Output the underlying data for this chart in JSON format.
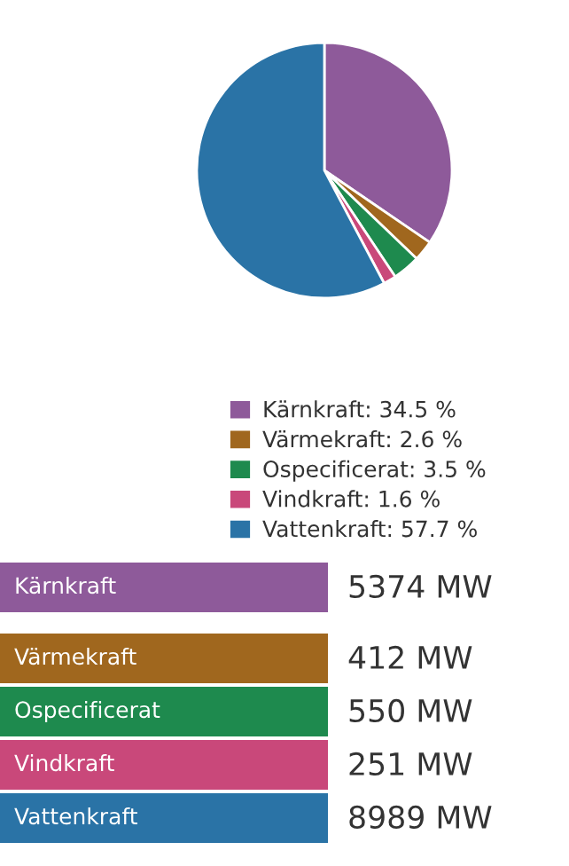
{
  "chart_data": [
    {
      "type": "pie",
      "categories": [
        "Kärnkraft: 34.5 %",
        "Värmekraft: 2.6 %",
        "Ospecificerat: 3.5 %",
        "Vindkraft: 1.6 %",
        "Vattenkraft: 57.7 %"
      ],
      "values": [
        34.5,
        2.6,
        3.5,
        1.6,
        57.7
      ],
      "colors": [
        "#8e5a9a",
        "#a0671e",
        "#1e8a4e",
        "#c9487a",
        "#2a73a6"
      ],
      "legend": "bottom"
    },
    {
      "type": "other",
      "categories": [
        "Kärnkraft",
        "Värmekraft",
        "Ospecificerat",
        "Vindkraft",
        "Vattenkraft"
      ],
      "values": [
        5374,
        412,
        550,
        251,
        8989
      ],
      "value_labels": [
        "5374 MW",
        "412 MW",
        "550 MW",
        "251 MW",
        "8989 MW"
      ],
      "colors": [
        "#8e5a9a",
        "#a0671e",
        "#1e8a4e",
        "#c9487a",
        "#2a73a6"
      ]
    }
  ]
}
